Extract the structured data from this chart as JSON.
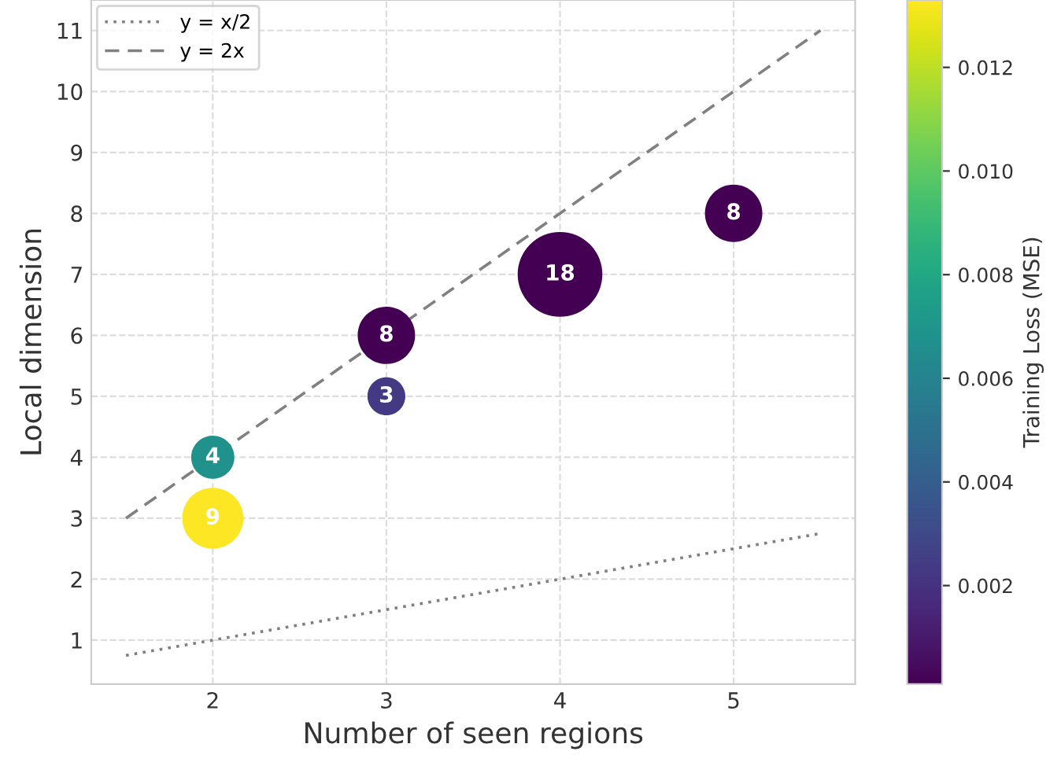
{
  "chart_data": {
    "type": "bubble",
    "xlabel": "Number of seen regions",
    "ylabel": "Local dimension",
    "clabel": "Training Loss (MSE)",
    "xlim": [
      1.3,
      5.7
    ],
    "ylim": [
      0.28,
      11.5
    ],
    "xticks": [
      2,
      3,
      4,
      5
    ],
    "yticks": [
      1,
      2,
      3,
      4,
      5,
      6,
      7,
      8,
      9,
      10,
      11
    ],
    "clim": [
      0.0001,
      0.0133
    ],
    "cticks": [
      0.002,
      0.004,
      0.006,
      0.008,
      {
        "value": 0.01,
        "label": "0.010"
      },
      0.012
    ],
    "annotations": [
      {
        "text": "4",
        "x": 2,
        "y": 4
      },
      {
        "text": "9",
        "x": 2,
        "y": 3
      },
      {
        "text": "8",
        "x": 3,
        "y": 6
      },
      {
        "text": "3",
        "x": 3,
        "y": 5
      },
      {
        "text": "18",
        "x": 4,
        "y": 7
      },
      {
        "text": "8",
        "x": 5,
        "y": 8
      }
    ],
    "grid": true,
    "legend": "top left",
    "series": [
      {
        "x": [
          2,
          2,
          3,
          3,
          4,
          5
        ],
        "values": [
          4,
          3,
          6,
          5,
          7,
          8
        ],
        "sizes": [
          0.26,
          0.52,
          0.46,
          0.2,
          1,
          0.46
        ],
        "colors": [
          "#21918c",
          "#fde725",
          "#440154",
          "#443983",
          "#440154",
          "#440154"
        ]
      },
      {
        "type": "line",
        "name": "y = x/2",
        "x": [
          1.5,
          5.5
        ],
        "values": [
          0.75,
          2.75
        ],
        "color": "#808080",
        "line_style": "dotted"
      },
      {
        "type": "line",
        "name": "y = 2x",
        "x": [
          1.5,
          5.5
        ],
        "values": [
          3,
          11
        ],
        "color": "#808080",
        "line_style": "dashed"
      }
    ]
  }
}
